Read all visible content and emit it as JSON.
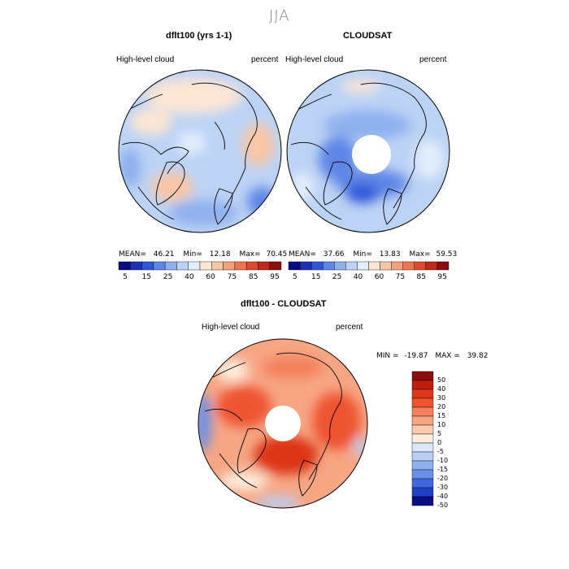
{
  "page_title": "JJA",
  "chart_data": [
    {
      "type": "heatmap",
      "title": "dflt100 (yrs 1-1)",
      "left_label": "High-level cloud",
      "right_label": "percent",
      "stats": {
        "mean_label": "MEAN=",
        "mean": "46.21",
        "min_label": "Min=",
        "min": "12.18",
        "max_label": "Max=",
        "max": "70.45"
      },
      "colorbar": {
        "orientation": "horizontal",
        "tick_labels": [
          "5",
          "15",
          "25",
          "40",
          "60",
          "75",
          "85",
          "95"
        ]
      }
    },
    {
      "type": "heatmap",
      "title": "CLOUDSAT",
      "left_label": "High-level cloud",
      "right_label": "percent",
      "stats": {
        "mean_label": "MEAN=",
        "mean": "37.66",
        "min_label": "Min=",
        "min": "13.83",
        "max_label": "Max=",
        "max": "59.53"
      },
      "colorbar": {
        "orientation": "horizontal",
        "tick_labels": [
          "5",
          "15",
          "25",
          "40",
          "60",
          "75",
          "85",
          "95"
        ]
      }
    },
    {
      "type": "heatmap",
      "title": "dflt100 - CLOUDSAT",
      "left_label": "High-level cloud",
      "right_label": "percent",
      "stats": {
        "min_label": "MIN =",
        "min": "-19.87",
        "max_label": "MAX =",
        "max": "39.82"
      },
      "colorbar": {
        "orientation": "vertical",
        "tick_labels": [
          "50",
          "40",
          "30",
          "20",
          "15",
          "10",
          "5",
          "0",
          "-5",
          "-10",
          "-15",
          "-20",
          "-30",
          "-40",
          "-50"
        ]
      }
    }
  ],
  "colors": {
    "seq_scale": [
      "#0a0a82",
      "#1f2fb8",
      "#2f56d8",
      "#5e86e6",
      "#8fb0ee",
      "#bcd3f5",
      "#e3eefc",
      "#fde6d4",
      "#f9c6a6",
      "#f5a07c",
      "#ee7552",
      "#dd4b2e",
      "#c22818",
      "#8b0d0d"
    ],
    "div_scale": [
      "#8b0d0d",
      "#c01c10",
      "#dd3618",
      "#ee5530",
      "#f4805c",
      "#f7a684",
      "#fbcbb0",
      "#fdecdc",
      "#dbe7fb",
      "#b8cff5",
      "#8eb1ee",
      "#6890e8",
      "#4068de",
      "#2140c8",
      "#0a0a82"
    ]
  }
}
